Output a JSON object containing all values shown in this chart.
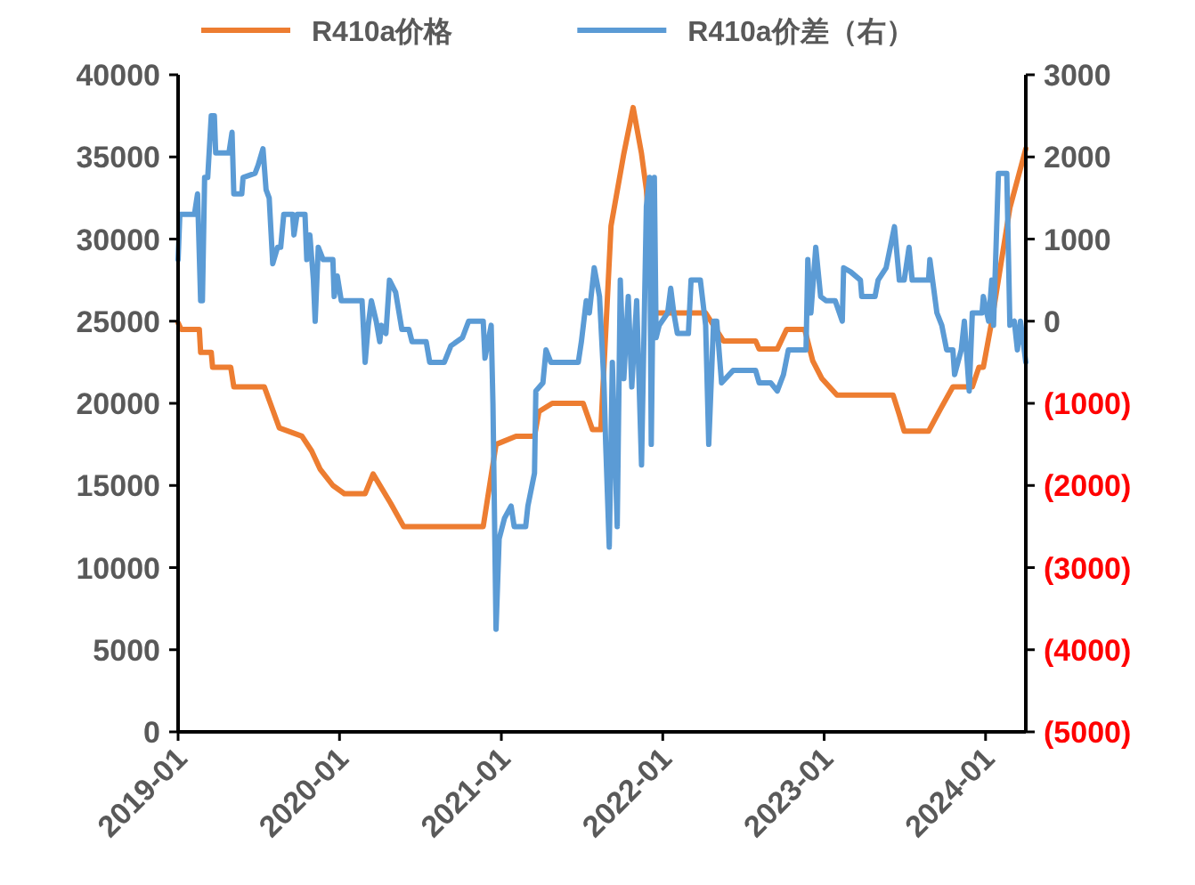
{
  "chart_data": {
    "type": "line",
    "legend": "top",
    "line_style": "solid",
    "marker": "none",
    "xlim": [
      "2019-01-01",
      "2024-04-01"
    ],
    "xticks": [
      "2019-01",
      "2020-01",
      "2021-01",
      "2022-01",
      "2023-01",
      "2024-01"
    ],
    "ylim": [
      0,
      40000
    ],
    "yticks": [
      0,
      5000,
      10000,
      15000,
      20000,
      25000,
      30000,
      35000,
      40000
    ],
    "y2lim": [
      -5000,
      3000
    ],
    "y2ticks": [
      {
        "value": -5000,
        "label": "(5000)"
      },
      {
        "value": -4000,
        "label": "(4000)"
      },
      {
        "value": -3000,
        "label": "(3000)"
      },
      {
        "value": -2000,
        "label": "(2000)"
      },
      {
        "value": -1000,
        "label": "(1000)"
      },
      0,
      1000,
      2000,
      3000
    ],
    "series": [
      {
        "name": "R410a价格",
        "color": "#ed7d31",
        "x": [
          "2019-01-01",
          "2019-01-08",
          "2019-02-18",
          "2019-02-21",
          "2019-03-17",
          "2019-03-20",
          "2019-04-30",
          "2019-05-07",
          "2019-07-15",
          "2019-08-18",
          "2019-10-08",
          "2019-10-30",
          "2019-11-18",
          "2019-12-17",
          "2020-01-12",
          "2020-02-28",
          "2020-03-17",
          "2020-04-26",
          "2020-05-25",
          "2020-11-21",
          "2020-12-20",
          "2021-02-03",
          "2021-03-17",
          "2021-03-27",
          "2021-04-26",
          "2021-07-05",
          "2021-07-26",
          "2021-08-14",
          "2021-09-06",
          "2021-10-05",
          "2021-10-26",
          "2021-11-14",
          "2021-11-25",
          "2021-12-13",
          "2022-04-08",
          "2022-05-18",
          "2022-07-30",
          "2022-08-07",
          "2022-09-17",
          "2022-10-08",
          "2022-11-18",
          "2022-12-06",
          "2022-12-27",
          "2023-01-30",
          "2023-06-06",
          "2023-06-20",
          "2023-07-01",
          "2023-08-25",
          "2023-09-20",
          "2023-10-19",
          "2023-12-02",
          "2023-12-17",
          "2023-12-27",
          "2024-01-15",
          "2024-02-25",
          "2024-04-01"
        ],
        "values": [
          24900,
          24500,
          24500,
          23100,
          23100,
          22200,
          22200,
          21000,
          21000,
          18500,
          18000,
          17100,
          16000,
          15000,
          14500,
          14500,
          15700,
          13900,
          12500,
          12500,
          17500,
          18000,
          18000,
          19500,
          20000,
          20000,
          18400,
          18400,
          30800,
          35200,
          38000,
          35200,
          33000,
          25500,
          25500,
          23800,
          23800,
          23300,
          23300,
          24500,
          24500,
          22600,
          21500,
          20500,
          20500,
          19300,
          18300,
          18300,
          19600,
          21000,
          21000,
          22200,
          22200,
          25000,
          31900,
          35500
        ]
      },
      {
        "name": "R410a价差（右）",
        "color": "#5b9bd5",
        "axis": "y2",
        "x": [
          "2019-01-01",
          "2019-01-05",
          "2019-02-07",
          "2019-02-14",
          "2019-02-21",
          "2019-02-25",
          "2019-03-02",
          "2019-03-09",
          "2019-03-17",
          "2019-03-24",
          "2019-03-27",
          "2019-04-26",
          "2019-05-03",
          "2019-05-07",
          "2019-05-25",
          "2019-05-28",
          "2019-06-24",
          "2019-07-01",
          "2019-07-12",
          "2019-07-19",
          "2019-07-26",
          "2019-08-03",
          "2019-08-14",
          "2019-08-21",
          "2019-08-28",
          "2019-09-17",
          "2019-09-20",
          "2019-09-27",
          "2019-10-15",
          "2019-10-19",
          "2019-10-26",
          "2019-11-03",
          "2019-11-07",
          "2019-11-14",
          "2019-11-25",
          "2019-12-17",
          "2019-12-20",
          "2019-12-27",
          "2020-01-05",
          "2020-02-21",
          "2020-02-28",
          "2020-03-06",
          "2020-03-13",
          "2020-03-24",
          "2020-04-01",
          "2020-04-05",
          "2020-04-15",
          "2020-04-23",
          "2020-05-07",
          "2020-05-21",
          "2020-06-06",
          "2020-06-13",
          "2020-07-15",
          "2020-07-23",
          "2020-08-25",
          "2020-09-09",
          "2020-10-05",
          "2020-10-19",
          "2020-11-11",
          "2020-11-21",
          "2020-11-25",
          "2020-12-09",
          "2020-12-13",
          "2020-12-20",
          "2020-12-27",
          "2021-01-08",
          "2021-01-23",
          "2021-01-30",
          "2021-02-25",
          "2021-03-02",
          "2021-03-17",
          "2021-03-20",
          "2021-04-05",
          "2021-04-12",
          "2021-04-23",
          "2021-06-24",
          "2021-07-01",
          "2021-07-12",
          "2021-07-19",
          "2021-07-30",
          "2021-08-11",
          "2021-08-21",
          "2021-08-25",
          "2021-09-02",
          "2021-09-09",
          "2021-09-20",
          "2021-09-27",
          "2021-10-05",
          "2021-10-15",
          "2021-10-23",
          "2021-11-03",
          "2021-11-14",
          "2021-11-25",
          "2021-12-02",
          "2021-12-06",
          "2021-12-13",
          "2021-12-17",
          "2021-12-24",
          "2022-01-12",
          "2022-01-19",
          "2022-01-26",
          "2022-02-03",
          "2022-02-28",
          "2022-03-06",
          "2022-03-27",
          "2022-04-08",
          "2022-04-15",
          "2022-04-26",
          "2022-05-03",
          "2022-05-14",
          "2022-06-09",
          "2022-07-30",
          "2022-08-07",
          "2022-09-02",
          "2022-09-17",
          "2022-10-01",
          "2022-10-12",
          "2022-11-21",
          "2022-11-25",
          "2022-12-02",
          "2022-12-13",
          "2022-12-24",
          "2023-01-05",
          "2023-01-26",
          "2023-02-11",
          "2023-02-14",
          "2023-03-02",
          "2023-03-24",
          "2023-03-27",
          "2023-04-26",
          "2023-05-03",
          "2023-05-21",
          "2023-06-09",
          "2023-06-20",
          "2023-07-01",
          "2023-07-12",
          "2023-07-19",
          "2023-08-25",
          "2023-08-28",
          "2023-09-13",
          "2023-09-24",
          "2023-10-05",
          "2023-10-19",
          "2023-10-23",
          "2023-11-07",
          "2023-11-14",
          "2023-11-25",
          "2023-12-02",
          "2023-12-24",
          "2023-12-27",
          "2024-01-08",
          "2024-01-15",
          "2024-01-19",
          "2024-01-30",
          "2024-02-18",
          "2024-02-25",
          "2024-03-06",
          "2024-03-13",
          "2024-03-20",
          "2024-04-01"
        ],
        "values": [
          750,
          1300,
          1300,
          1550,
          250,
          250,
          1750,
          1750,
          2500,
          2500,
          2050,
          2050,
          2300,
          1550,
          1550,
          1750,
          1800,
          1900,
          2100,
          1600,
          1500,
          700,
          900,
          900,
          1300,
          1300,
          1050,
          1300,
          1300,
          750,
          1050,
          500,
          0,
          900,
          750,
          750,
          300,
          550,
          250,
          250,
          -500,
          -50,
          250,
          0,
          -250,
          -50,
          -150,
          500,
          350,
          -100,
          -100,
          -250,
          -250,
          -500,
          -500,
          -300,
          -200,
          0,
          0,
          0,
          -450,
          -50,
          -1000,
          -3750,
          -2650,
          -2400,
          -2250,
          -2500,
          -2500,
          -2250,
          -1850,
          -850,
          -750,
          -350,
          -500,
          -500,
          -250,
          250,
          100,
          650,
          300,
          -750,
          -1500,
          -2750,
          -500,
          -2500,
          500,
          -700,
          300,
          -800,
          250,
          -1750,
          1400,
          1750,
          -1500,
          1750,
          -200,
          -50,
          100,
          400,
          100,
          -150,
          -150,
          500,
          500,
          -50,
          -1500,
          0,
          0,
          -750,
          -600,
          -600,
          -750,
          -750,
          -850,
          -650,
          -350,
          -350,
          750,
          100,
          900,
          300,
          250,
          250,
          0,
          650,
          600,
          500,
          300,
          300,
          500,
          650,
          1150,
          500,
          500,
          900,
          500,
          500,
          750,
          100,
          -50,
          -350,
          -350,
          -650,
          -350,
          0,
          -850,
          100,
          100,
          300,
          0,
          500,
          -50,
          1800,
          1800,
          -50,
          0,
          -350,
          0,
          -500
        ]
      }
    ]
  }
}
